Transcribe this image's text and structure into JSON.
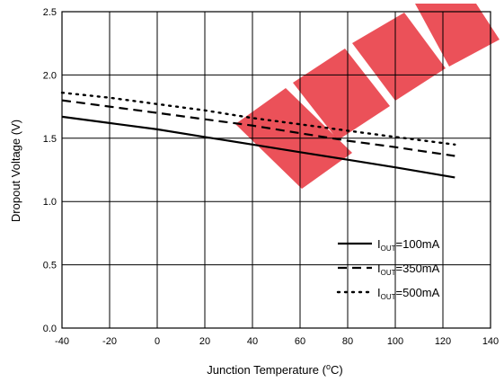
{
  "watermark_color": "#e8323c",
  "chart_data": {
    "type": "line",
    "title": "",
    "xlabel": "Junction Temperature (",
    "xlabel_sup": "o",
    "xlabel_suffix": "C)",
    "ylabel": "Dropout Voltage (V)",
    "xlim": [
      -40,
      140
    ],
    "ylim": [
      0.0,
      2.5
    ],
    "x_ticks": [
      "-40",
      "-20",
      "0",
      "20",
      "40",
      "60",
      "80",
      "100",
      "120",
      "140"
    ],
    "x_tick_values": [
      -40,
      -20,
      0,
      20,
      40,
      60,
      80,
      100,
      120,
      140
    ],
    "y_ticks": [
      "0.0",
      "0.5",
      "1.0",
      "1.5",
      "2.0",
      "2.5"
    ],
    "y_tick_values": [
      0.0,
      0.5,
      1.0,
      1.5,
      2.0,
      2.5
    ],
    "grid": true,
    "legend_position": "bottom-right",
    "series": [
      {
        "legend_main": "I",
        "legend_sub": "OUT",
        "legend_value": "=100mA",
        "style": "solid",
        "x": [
          -40,
          -20,
          0,
          20,
          40,
          60,
          80,
          100,
          125
        ],
        "y": [
          1.67,
          1.62,
          1.57,
          1.51,
          1.45,
          1.39,
          1.33,
          1.27,
          1.19
        ]
      },
      {
        "legend_main": "I",
        "legend_sub": "OUT",
        "legend_value": "=350mA",
        "style": "dashed",
        "x": [
          -40,
          -20,
          0,
          20,
          40,
          60,
          80,
          100,
          125
        ],
        "y": [
          1.8,
          1.75,
          1.7,
          1.65,
          1.6,
          1.54,
          1.48,
          1.43,
          1.36
        ]
      },
      {
        "legend_main": "I",
        "legend_sub": "OUT",
        "legend_value": "=500mA",
        "style": "dotted",
        "x": [
          -40,
          -20,
          0,
          20,
          40,
          60,
          80,
          100,
          125
        ],
        "y": [
          1.86,
          1.82,
          1.77,
          1.72,
          1.66,
          1.61,
          1.56,
          1.51,
          1.45
        ]
      }
    ]
  }
}
